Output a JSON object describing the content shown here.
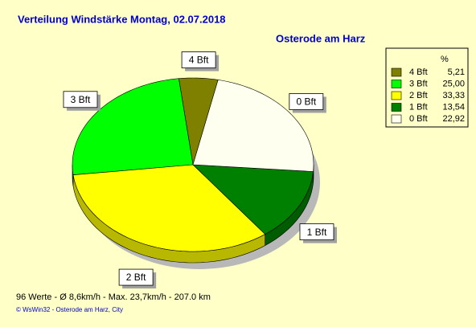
{
  "chart_data": {
    "type": "pie",
    "title": "Verteilung Windstärke  Montag, 02.07.2018",
    "subtitle": "Osterode am Harz",
    "legend_header": "%",
    "categories": [
      "4 Bft",
      "3 Bft",
      "2 Bft",
      "1 Bft",
      "0 Bft"
    ],
    "values": [
      5.21,
      25.0,
      33.33,
      13.54,
      22.92
    ],
    "value_labels": [
      "5,21",
      "25,00",
      "33,33",
      "13,54",
      "22,92"
    ],
    "colors": [
      "#808000",
      "#00ff00",
      "#ffff00",
      "#008000",
      "#fffff0"
    ],
    "legend_position": "upper right",
    "footer": "96 Werte   -   Ø 8,6km/h  -  Max. 23,7km/h   -   207.0 km",
    "credit": "© WsWin32  -  Osterode am Harz, City"
  }
}
